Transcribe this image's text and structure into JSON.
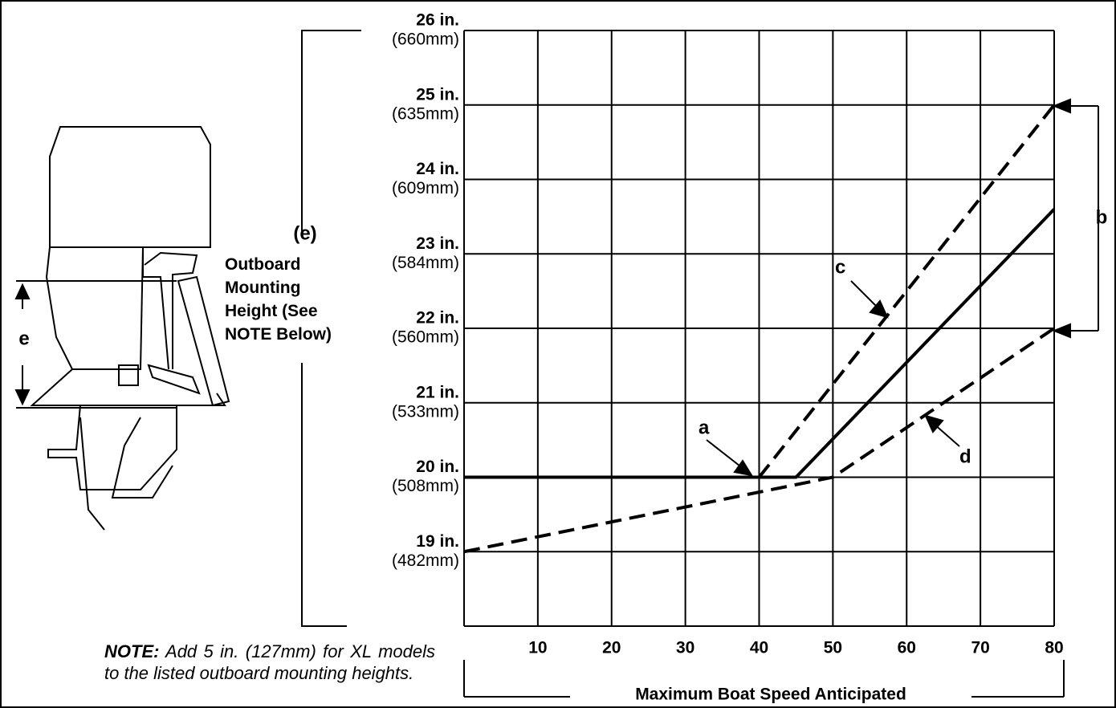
{
  "chart_data": {
    "type": "line",
    "xlabel": "Maximum Boat Speed Anticipated",
    "ylabel_letter": "(e)",
    "ylabel": "Outboard Mounting Height (See NOTE Below)",
    "motor_label": "e",
    "xlim": [
      0,
      80
    ],
    "xticks": [
      10,
      20,
      30,
      40,
      50,
      60,
      70,
      80
    ],
    "ylim": [
      18,
      26
    ],
    "yticks": [
      {
        "value": 19,
        "label": "19 in.",
        "metric": "(482mm)"
      },
      {
        "value": 20,
        "label": "20 in.",
        "metric": "(508mm)"
      },
      {
        "value": 21,
        "label": "21 in.",
        "metric": "(533mm)"
      },
      {
        "value": 22,
        "label": "22 in.",
        "metric": "(560mm)"
      },
      {
        "value": 23,
        "label": "23 in.",
        "metric": "(584mm)"
      },
      {
        "value": 24,
        "label": "24 in.",
        "metric": "(609mm)"
      },
      {
        "value": 25,
        "label": "25 in.",
        "metric": "(635mm)"
      },
      {
        "value": 26,
        "label": "26 in.",
        "metric": "(660mm)"
      }
    ],
    "grid": true,
    "series": [
      {
        "label": "a",
        "style": "solid",
        "color": "#000000",
        "x": [
          0,
          45,
          80
        ],
        "values": [
          20,
          20,
          23.6
        ]
      },
      {
        "label": "c",
        "style": "dashed",
        "color": "#000000",
        "x": [
          40,
          80
        ],
        "values": [
          20,
          25
        ]
      },
      {
        "label": "d",
        "style": "dashed",
        "color": "#000000",
        "x": [
          0,
          50,
          80
        ],
        "values": [
          19,
          20,
          22
        ]
      }
    ],
    "bracket_label": "b",
    "note_title": "NOTE:",
    "note": "Add 5 in. (127mm) for XL models to the listed outboard mounting heights."
  }
}
